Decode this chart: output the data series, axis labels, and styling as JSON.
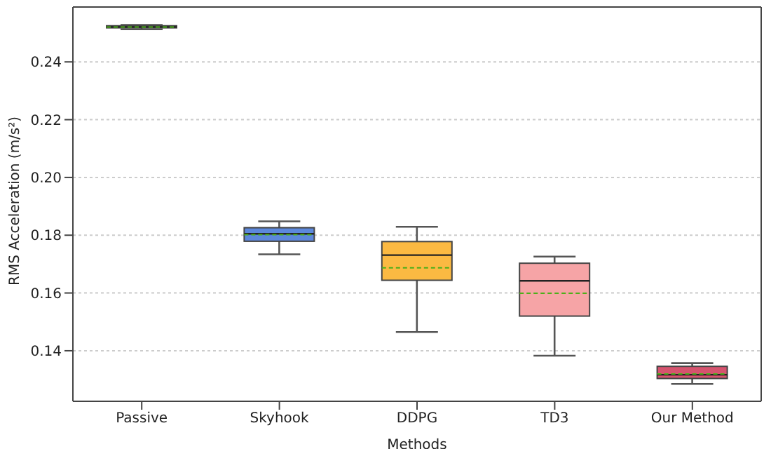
{
  "chart_data": {
    "type": "box",
    "xlabel": "Methods",
    "ylabel": "RMS Acceleration (m/s²)",
    "categories": [
      "Passive",
      "Skyhook",
      "DDPG",
      "TD3",
      "Our Method"
    ],
    "colors": [
      "#3a8f55",
      "#4a7bd8",
      "#fbb12e",
      "#f59a9c",
      "#d1405e"
    ],
    "boxes": [
      {
        "low": 0.2513,
        "q1": 0.2518,
        "median": 0.2521,
        "q3": 0.2525,
        "high": 0.2528,
        "mean": 0.2521
      },
      {
        "low": 0.1734,
        "q1": 0.1779,
        "median": 0.1805,
        "q3": 0.1826,
        "high": 0.1848,
        "mean": 0.1802
      },
      {
        "low": 0.1465,
        "q1": 0.1644,
        "median": 0.1731,
        "q3": 0.1778,
        "high": 0.1829,
        "mean": 0.1687
      },
      {
        "low": 0.1383,
        "q1": 0.152,
        "median": 0.1642,
        "q3": 0.1703,
        "high": 0.1726,
        "mean": 0.1599
      },
      {
        "low": 0.1285,
        "q1": 0.1304,
        "median": 0.1317,
        "q3": 0.1346,
        "high": 0.1357,
        "mean": 0.132
      }
    ],
    "ylim": [
      0.1225,
      0.259
    ],
    "yticks": [
      {
        "value": 0.14,
        "label": "0.14"
      },
      {
        "value": 0.16,
        "label": "0.16"
      },
      {
        "value": 0.18,
        "label": "0.18"
      },
      {
        "value": 0.2,
        "label": "0.20"
      },
      {
        "value": 0.22,
        "label": "0.22"
      },
      {
        "value": 0.24,
        "label": "0.24"
      }
    ],
    "grid": "y"
  }
}
